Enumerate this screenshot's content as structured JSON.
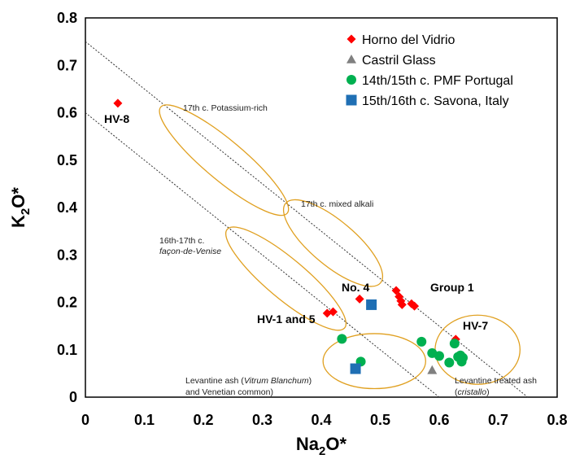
{
  "chart_data": {
    "type": "scatter",
    "xlabel_main": "Na",
    "xlabel_sub": "2",
    "xlabel_tail": "O*",
    "ylabel_main": "K",
    "ylabel_sub": "2",
    "ylabel_tail": "O*",
    "xlim": [
      0,
      0.8
    ],
    "ylim": [
      0,
      0.8
    ],
    "x_ticks": [
      "0",
      "0.1",
      "0.2",
      "0.3",
      "0.4",
      "0.5",
      "0.6",
      "0.7",
      "0.8"
    ],
    "y_ticks": [
      "0",
      "0.1",
      "0.2",
      "0.3",
      "0.4",
      "0.5",
      "0.6",
      "0.7",
      "0.8"
    ],
    "grid": false,
    "legend_position": "top-right",
    "series": [
      {
        "name": "Horno del Vidrio",
        "marker": "diamond",
        "color": "#ff0000",
        "points": [
          [
            0.055,
            0.62
          ],
          [
            0.41,
            0.177
          ],
          [
            0.42,
            0.18
          ],
          [
            0.465,
            0.207
          ],
          [
            0.527,
            0.225
          ],
          [
            0.532,
            0.212
          ],
          [
            0.535,
            0.203
          ],
          [
            0.537,
            0.195
          ],
          [
            0.553,
            0.197
          ],
          [
            0.558,
            0.192
          ],
          [
            0.628,
            0.122
          ]
        ]
      },
      {
        "name": "Castril Glass",
        "marker": "triangle",
        "color": "#808080",
        "points": [
          [
            0.588,
            0.057
          ]
        ]
      },
      {
        "name": "14th/15th c. PMF Portugal",
        "marker": "circle",
        "color": "#00b050",
        "points": [
          [
            0.435,
            0.123
          ],
          [
            0.467,
            0.075
          ],
          [
            0.57,
            0.117
          ],
          [
            0.588,
            0.093
          ],
          [
            0.6,
            0.087
          ],
          [
            0.617,
            0.073
          ],
          [
            0.626,
            0.113
          ],
          [
            0.632,
            0.085
          ],
          [
            0.636,
            0.088
          ],
          [
            0.64,
            0.083
          ],
          [
            0.638,
            0.075
          ]
        ]
      },
      {
        "name": "15th/16th c. Savona, Italy",
        "marker": "square",
        "color": "#1f6fb4",
        "points": [
          [
            0.485,
            0.195
          ],
          [
            0.458,
            0.06
          ]
        ]
      }
    ],
    "reference_lines": [
      {
        "from": [
          0,
          0.75
        ],
        "to": [
          0.75,
          0
        ]
      },
      {
        "from": [
          0,
          0.6
        ],
        "to": [
          0.6,
          0
        ]
      }
    ],
    "regions": [
      {
        "cx": 0.235,
        "cy": 0.5,
        "rx": 0.14,
        "ry": 0.042,
        "angle": 40
      },
      {
        "cx": 0.42,
        "cy": 0.325,
        "rx": 0.105,
        "ry": 0.047,
        "angle": 40
      },
      {
        "cx": 0.34,
        "cy": 0.25,
        "rx": 0.13,
        "ry": 0.042,
        "angle": 40
      },
      {
        "cx": 0.49,
        "cy": 0.076,
        "rx": 0.087,
        "ry": 0.058,
        "angle": 0
      },
      {
        "cx": 0.665,
        "cy": 0.1,
        "rx": 0.072,
        "ry": 0.073,
        "angle": 0
      }
    ],
    "point_labels": [
      "HV-8",
      "HV-1 and 5",
      "No. 4",
      "Group 1",
      "HV-7"
    ],
    "region_labels": {
      "potassium_rich": "17th c. Potassium-rich",
      "mixed_alkali": "17th c. mixed alkali",
      "facon_line1": "16th-17th c.",
      "facon_line2": "façon-de-Venise",
      "levantine_line1_pre": "Levantine ash (",
      "levantine_line1_italic": "Vitrum Blanchum",
      "levantine_line2": "and Venetian common)",
      "treated_line1": "Levantine treated ash",
      "treated_line2_pre": "(",
      "treated_line2_italic": "cristallo",
      "treated_line2_post": ")"
    }
  }
}
